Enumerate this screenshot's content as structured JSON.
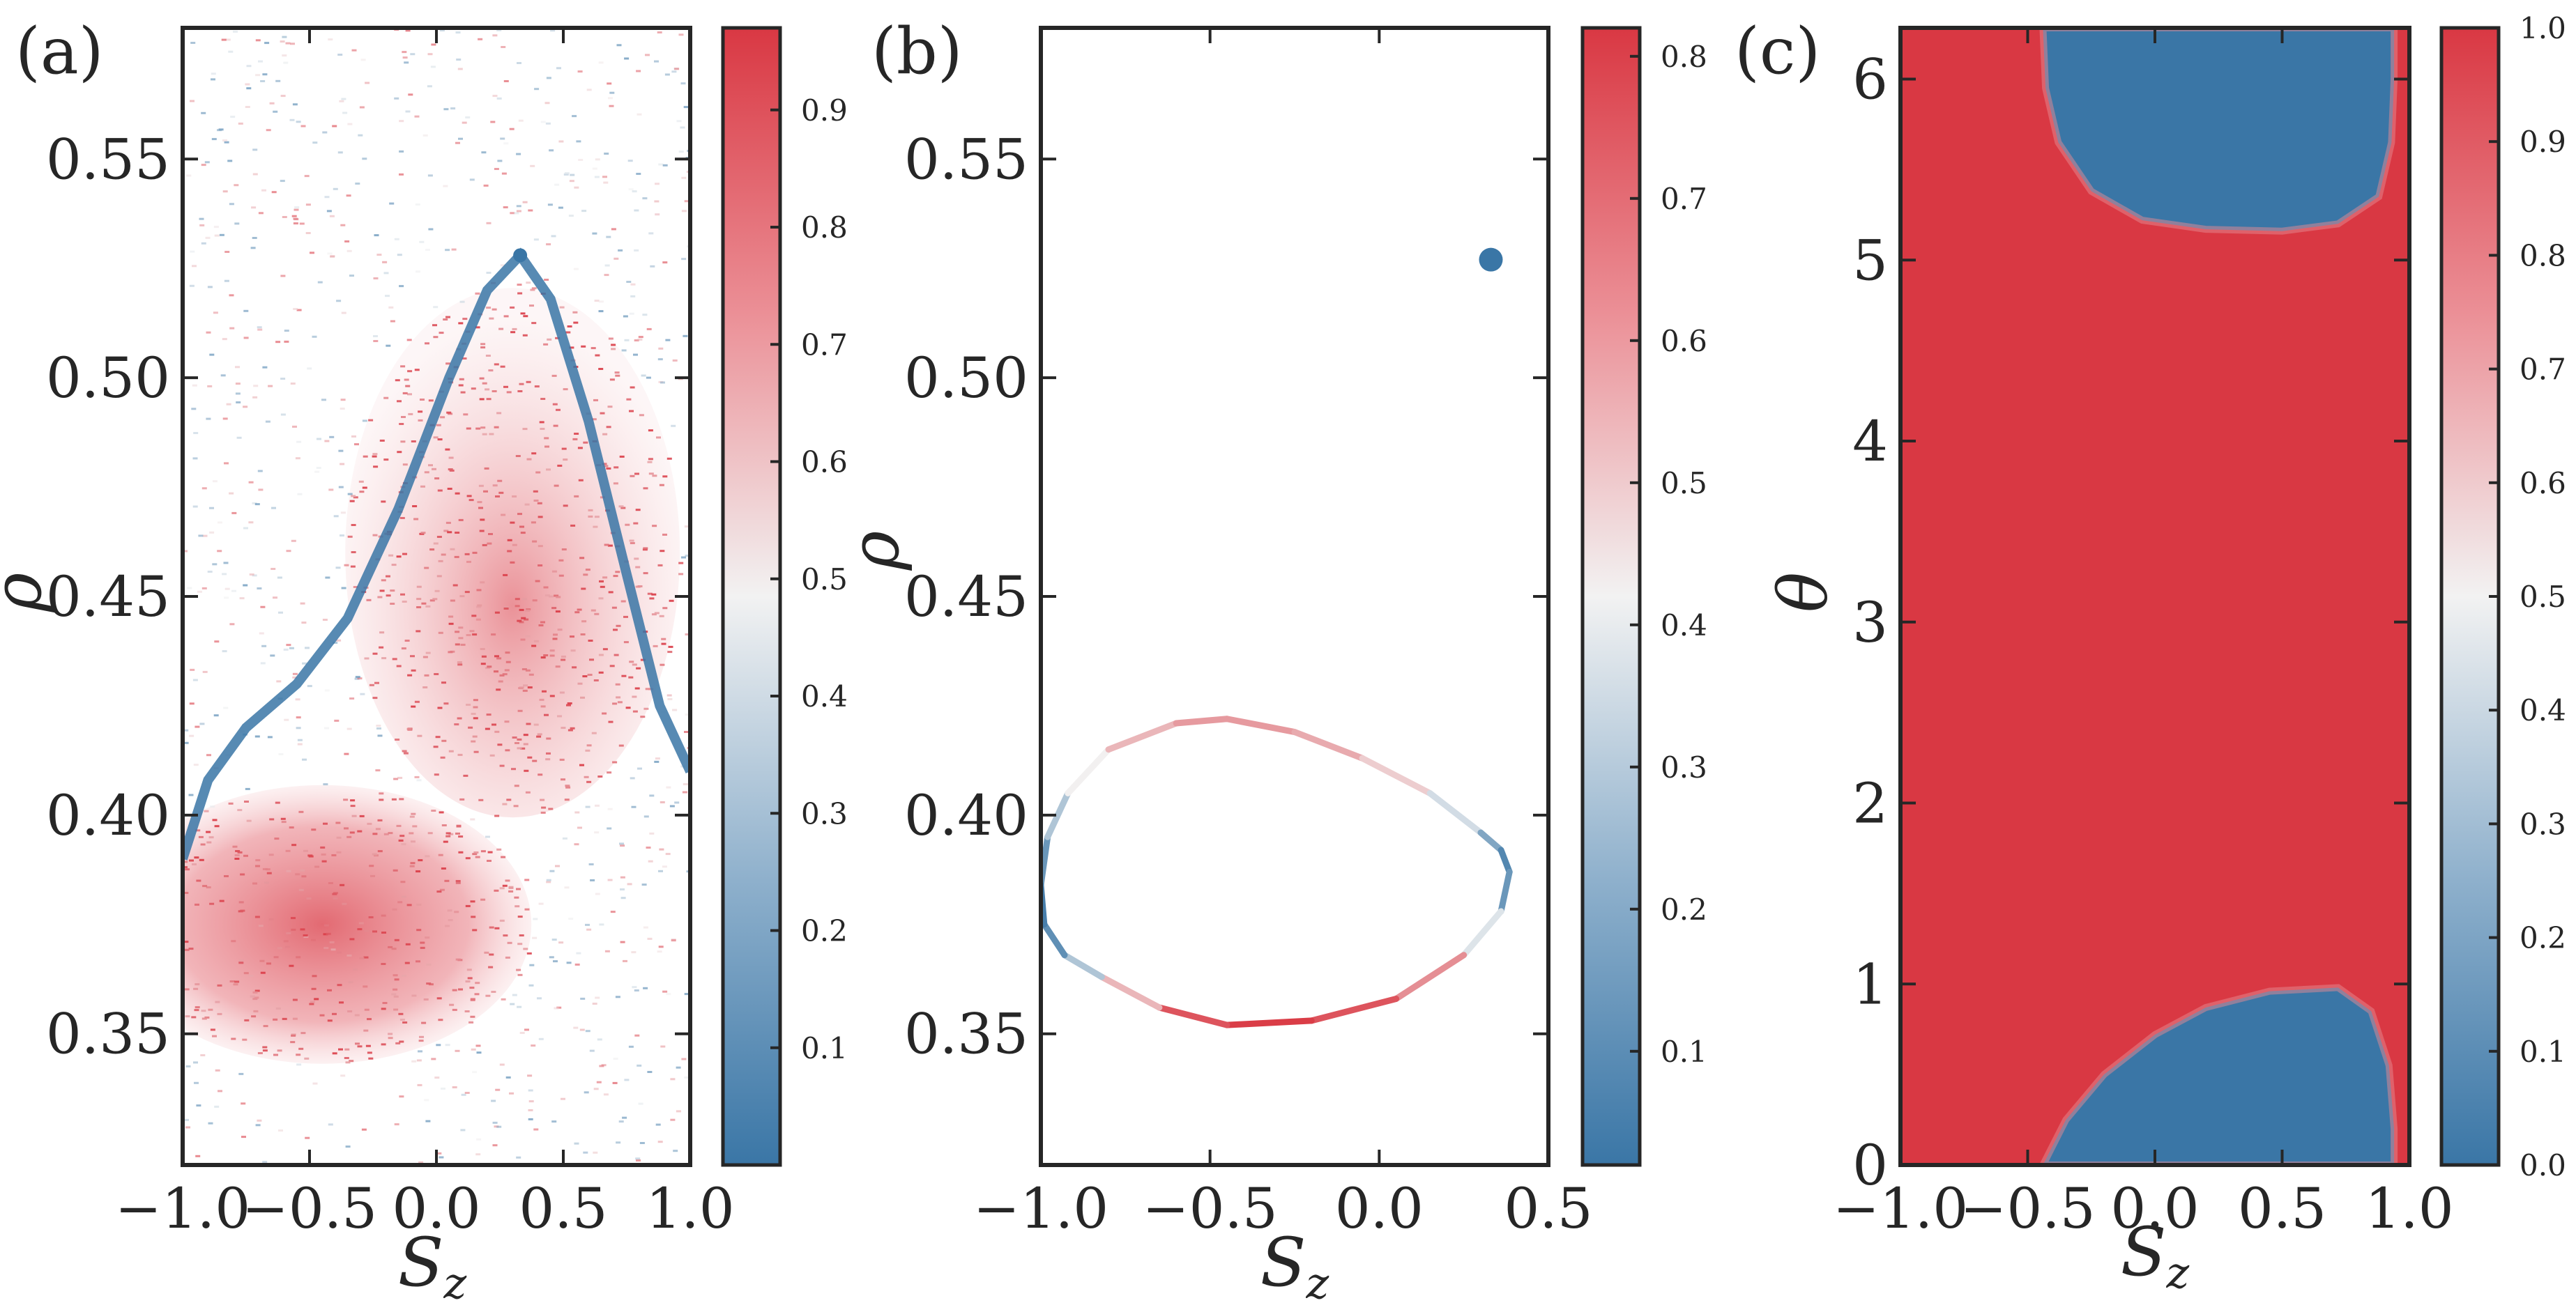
{
  "colors": {
    "low": "#3a76a6",
    "mid": "#f2f2f2",
    "high": "#d93843",
    "frame": "#262626"
  },
  "chart_data": [
    {
      "type": "scatter",
      "panel_label": "(a)",
      "xlabel": "S",
      "xlabel_sub": "z",
      "ylabel": "ρ",
      "xlim": [
        -1.0,
        1.0
      ],
      "ylim": [
        0.32,
        0.58
      ],
      "xticks": [
        "−1.0",
        "−0.5",
        "0.0",
        "0.5",
        "1.0"
      ],
      "xtick_values": [
        -1.0,
        -0.5,
        0.0,
        0.5,
        1.0
      ],
      "yticks": [
        "0.35",
        "0.40",
        "0.45",
        "0.50",
        "0.55"
      ],
      "ytick_values": [
        0.35,
        0.4,
        0.45,
        0.5,
        0.55
      ],
      "colorbar": {
        "range": [
          0.0,
          0.97
        ],
        "ticks": [
          "0.1",
          "0.2",
          "0.3",
          "0.4",
          "0.5",
          "0.6",
          "0.7",
          "0.8",
          "0.9"
        ],
        "tick_values": [
          0.1,
          0.2,
          0.3,
          0.4,
          0.5,
          0.6,
          0.7,
          0.8,
          0.9
        ]
      },
      "features": {
        "separatrix": [
          [
            -1.0,
            0.39
          ],
          [
            -0.9,
            0.408
          ],
          [
            -0.75,
            0.42
          ],
          [
            -0.55,
            0.43
          ],
          [
            -0.35,
            0.445
          ],
          [
            -0.15,
            0.47
          ],
          [
            0.05,
            0.5
          ],
          [
            0.2,
            0.52
          ],
          [
            0.33,
            0.528
          ],
          [
            0.45,
            0.518
          ],
          [
            0.6,
            0.49
          ],
          [
            0.75,
            0.455
          ],
          [
            0.88,
            0.425
          ],
          [
            1.0,
            0.41
          ]
        ],
        "lower_lobe_center": [
          -0.45,
          0.375
        ],
        "upper_region_center": [
          0.3,
          0.46
        ],
        "fixed_point": [
          0.33,
          0.528
        ],
        "density": "scattered points, red inside lobes (value ~0.9), blue along separatrix (value ~0.05)"
      }
    },
    {
      "type": "line",
      "panel_label": "(b)",
      "xlabel": "S",
      "xlabel_sub": "z",
      "ylabel": "ρ",
      "xlim": [
        -1.0,
        0.5
      ],
      "ylim": [
        0.32,
        0.58
      ],
      "xticks": [
        "−1.0",
        "−0.5",
        "0.0",
        "0.5"
      ],
      "xtick_values": [
        -1.0,
        -0.5,
        0.0,
        0.5
      ],
      "yticks": [
        "0.35",
        "0.40",
        "0.45",
        "0.50",
        "0.55"
      ],
      "ytick_values": [
        0.35,
        0.4,
        0.45,
        0.5,
        0.55
      ],
      "colorbar": {
        "range": [
          0.02,
          0.82
        ],
        "ticks": [
          "0.1",
          "0.2",
          "0.3",
          "0.4",
          "0.5",
          "0.6",
          "0.7",
          "0.8"
        ],
        "tick_values": [
          0.1,
          0.2,
          0.3,
          0.4,
          0.5,
          0.6,
          0.7,
          0.8
        ]
      },
      "orbit": [
        {
          "x": -1.0,
          "y": 0.384,
          "c": 0.05
        },
        {
          "x": -0.98,
          "y": 0.395,
          "c": 0.2
        },
        {
          "x": -0.92,
          "y": 0.405,
          "c": 0.35
        },
        {
          "x": -0.8,
          "y": 0.415,
          "c": 0.5
        },
        {
          "x": -0.6,
          "y": 0.421,
          "c": 0.6
        },
        {
          "x": -0.45,
          "y": 0.422,
          "c": 0.62
        },
        {
          "x": -0.25,
          "y": 0.419,
          "c": 0.6
        },
        {
          "x": -0.05,
          "y": 0.413,
          "c": 0.55
        },
        {
          "x": 0.15,
          "y": 0.405,
          "c": 0.45
        },
        {
          "x": 0.3,
          "y": 0.396,
          "c": 0.25
        },
        {
          "x": 0.36,
          "y": 0.392,
          "c": 0.1
        },
        {
          "x": 0.385,
          "y": 0.387,
          "c": 0.05
        },
        {
          "x": 0.36,
          "y": 0.378,
          "c": 0.2
        },
        {
          "x": 0.25,
          "y": 0.368,
          "c": 0.55
        },
        {
          "x": 0.05,
          "y": 0.358,
          "c": 0.72
        },
        {
          "x": -0.2,
          "y": 0.353,
          "c": 0.8
        },
        {
          "x": -0.45,
          "y": 0.352,
          "c": 0.82
        },
        {
          "x": -0.65,
          "y": 0.356,
          "c": 0.7
        },
        {
          "x": -0.82,
          "y": 0.363,
          "c": 0.4
        },
        {
          "x": -0.93,
          "y": 0.368,
          "c": 0.15
        },
        {
          "x": -0.99,
          "y": 0.375,
          "c": 0.05
        },
        {
          "x": -1.0,
          "y": 0.384,
          "c": 0.05
        }
      ],
      "point": {
        "x": 0.33,
        "y": 0.527,
        "c": 0.02
      }
    },
    {
      "type": "heatmap",
      "panel_label": "(c)",
      "xlabel": "S",
      "xlabel_sub": "z",
      "ylabel": "θ",
      "xlim": [
        -1.0,
        1.0
      ],
      "ylim": [
        0,
        6.283
      ],
      "xticks": [
        "−1.0",
        "−0.5",
        "0.0",
        "0.5",
        "1.0"
      ],
      "xtick_values": [
        -1.0,
        -0.5,
        0.0,
        0.5,
        1.0
      ],
      "yticks": [
        "0",
        "1",
        "2",
        "3",
        "4",
        "5",
        "6"
      ],
      "ytick_values": [
        0,
        1,
        2,
        3,
        4,
        5,
        6
      ],
      "background_value": 1.0,
      "colorbar": {
        "range": [
          0.0,
          1.0
        ],
        "ticks": [
          "0.0",
          "0.1",
          "0.2",
          "0.3",
          "0.4",
          "0.5",
          "0.6",
          "0.7",
          "0.8",
          "0.9",
          "1.0"
        ],
        "tick_values": [
          0.0,
          0.1,
          0.2,
          0.3,
          0.4,
          0.5,
          0.6,
          0.7,
          0.8,
          0.9,
          1.0
        ]
      },
      "regions": [
        {
          "value": 0.0,
          "boundary": [
            [
              -0.44,
              0
            ],
            [
              -0.35,
              0.25
            ],
            [
              -0.2,
              0.5
            ],
            [
              0.0,
              0.72
            ],
            [
              0.2,
              0.87
            ],
            [
              0.45,
              0.96
            ],
            [
              0.72,
              0.98
            ],
            [
              0.85,
              0.85
            ],
            [
              0.92,
              0.55
            ],
            [
              0.94,
              0.2
            ],
            [
              0.94,
              0
            ]
          ]
        },
        {
          "value": 0.0,
          "boundary": [
            [
              -0.44,
              6.283
            ],
            [
              -0.43,
              5.95
            ],
            [
              -0.38,
              5.65
            ],
            [
              -0.25,
              5.38
            ],
            [
              -0.05,
              5.22
            ],
            [
              0.2,
              5.17
            ],
            [
              0.5,
              5.16
            ],
            [
              0.72,
              5.2
            ],
            [
              0.88,
              5.35
            ],
            [
              0.93,
              5.65
            ],
            [
              0.94,
              6.0
            ],
            [
              0.94,
              6.283
            ]
          ]
        }
      ]
    }
  ]
}
